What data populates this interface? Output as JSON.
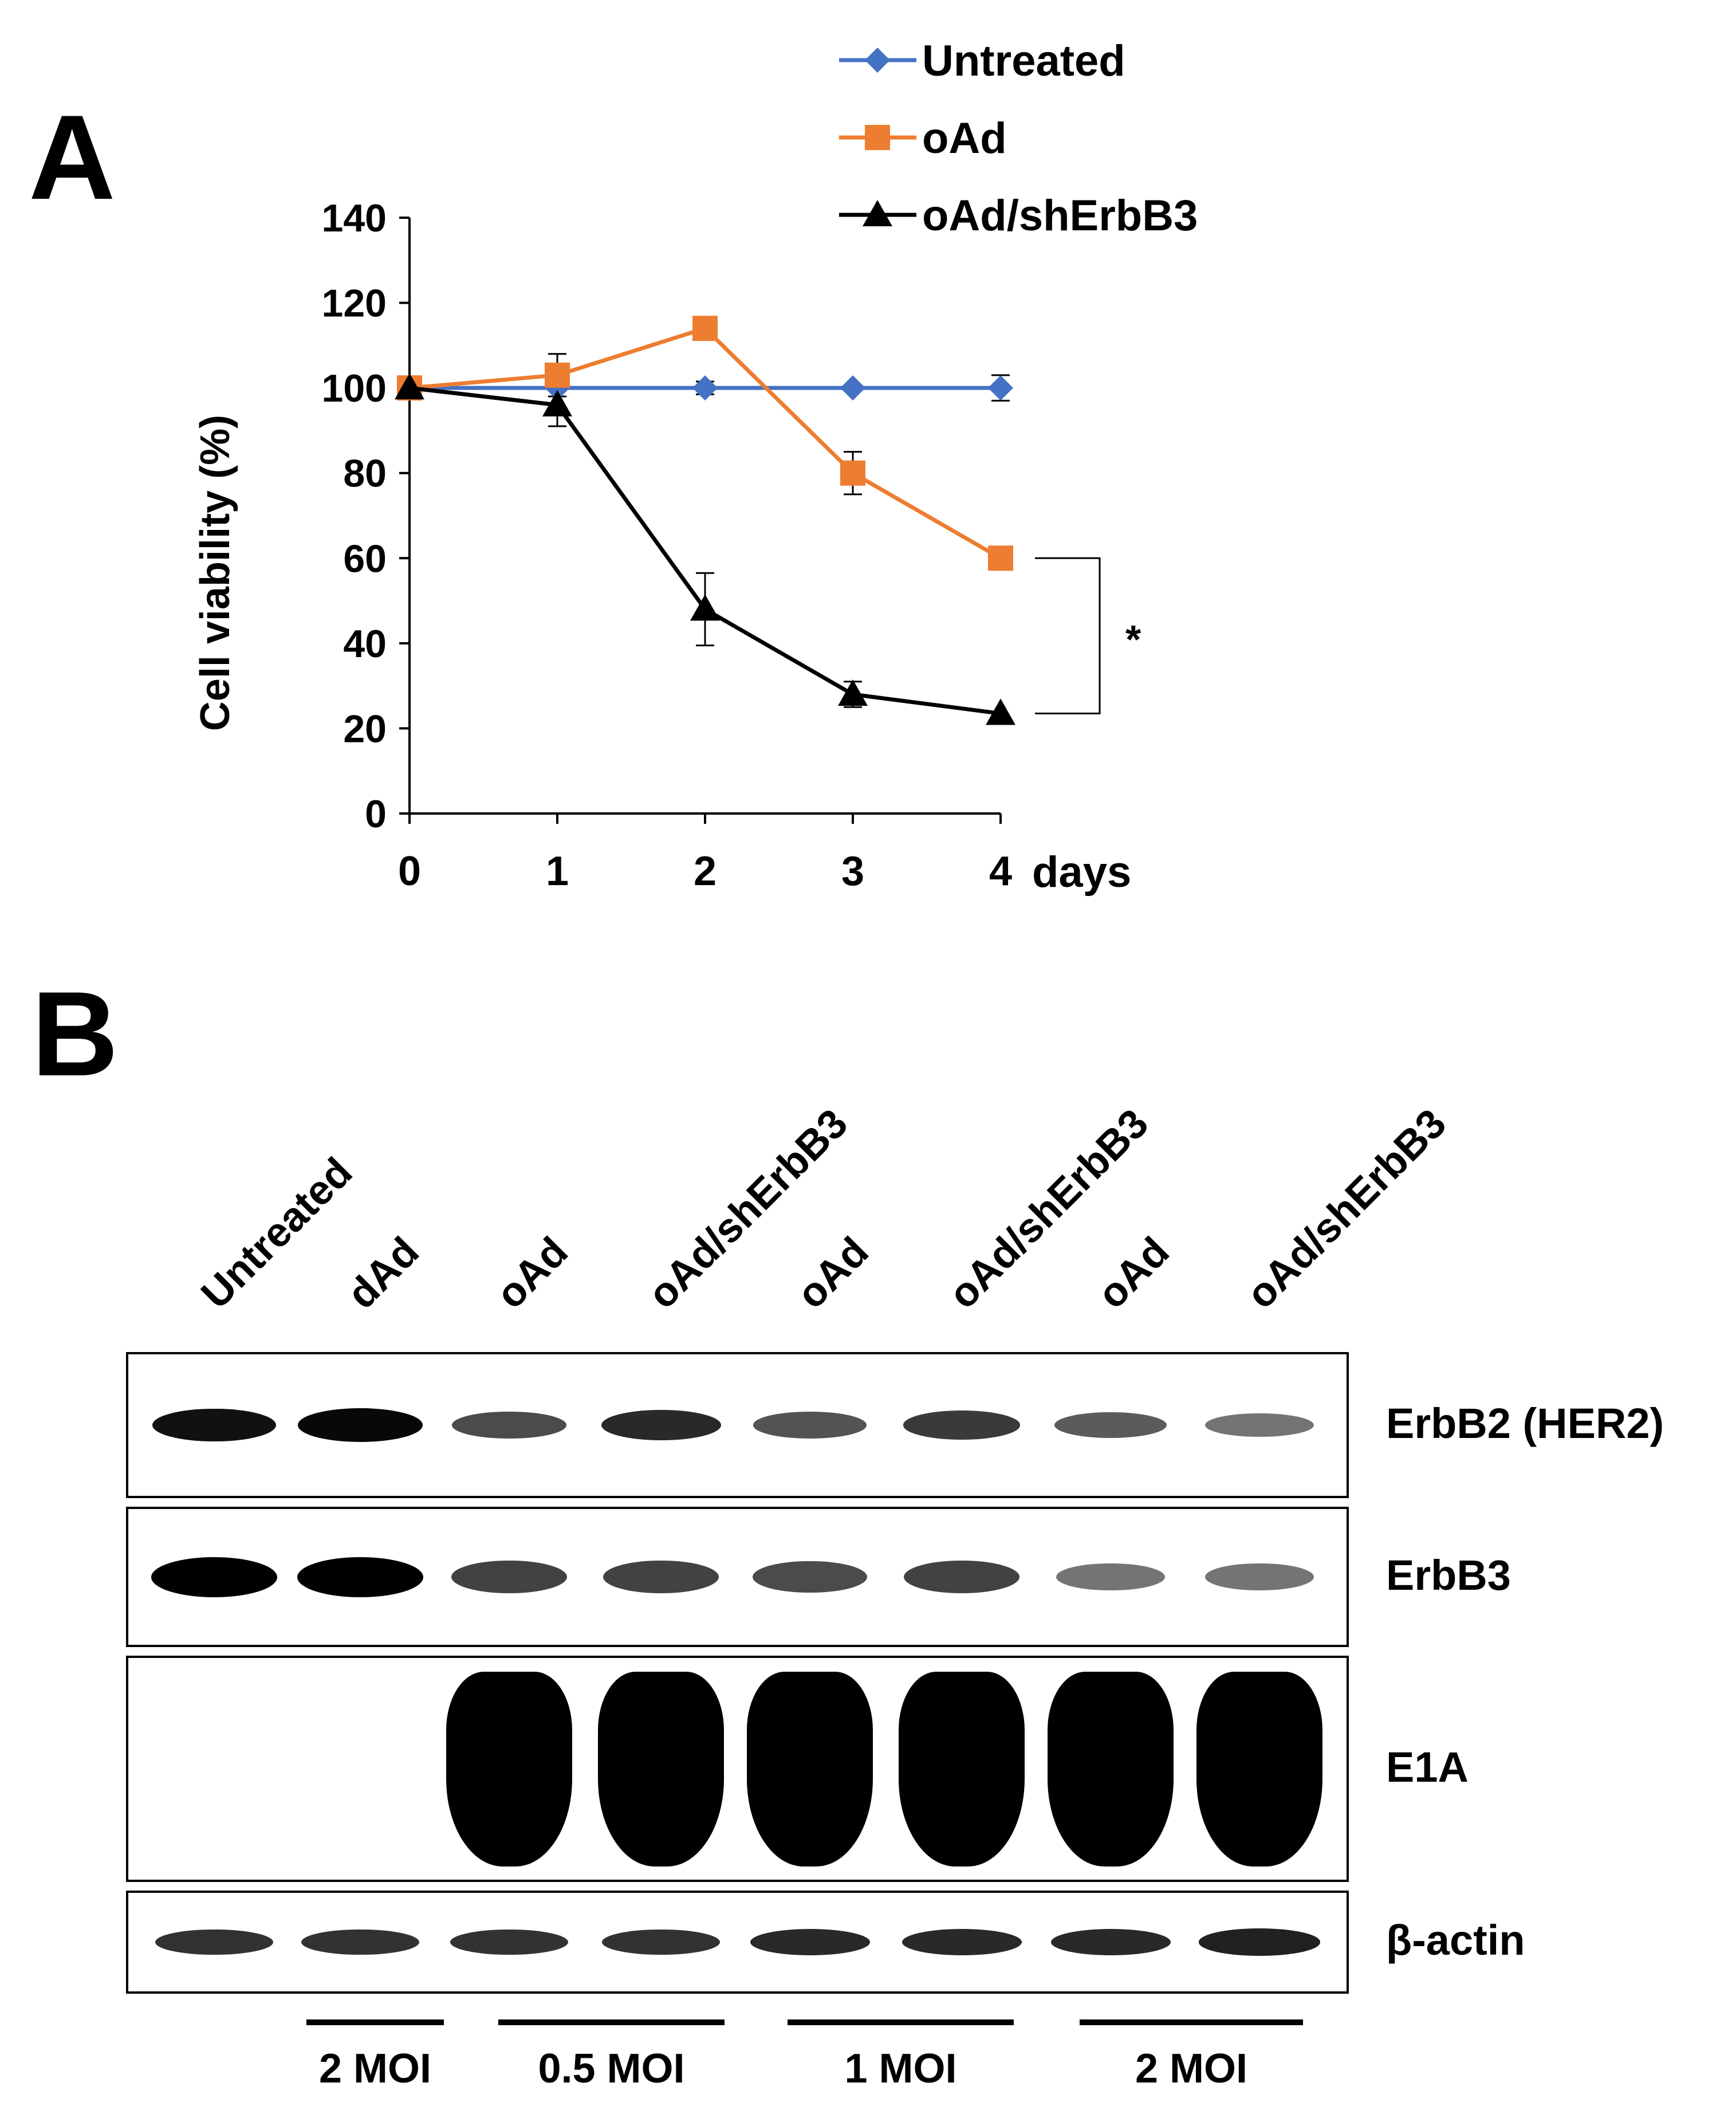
{
  "panel_a": {
    "letter": "A"
  },
  "panel_b": {
    "letter": "B",
    "lanes": [
      "Untreated",
      "dAd",
      "oAd",
      "oAd/shErbB3",
      "oAd",
      "oAd/shErbB3",
      "oAd",
      "oAd/shErbB3"
    ],
    "blots": [
      {
        "label": "ErbB2 (HER2)",
        "intensity": [
          0.9,
          0.95,
          0.55,
          0.75,
          0.5,
          0.65,
          0.45,
          0.3
        ]
      },
      {
        "label": "ErbB3",
        "intensity": [
          1.0,
          1.0,
          0.6,
          0.6,
          0.55,
          0.6,
          0.3,
          0.3
        ]
      },
      {
        "label": "E1A",
        "intensity": [
          0,
          0,
          1,
          1,
          1,
          1,
          1,
          1
        ]
      },
      {
        "label": "β-actin",
        "intensity": [
          0.7,
          0.7,
          0.7,
          0.7,
          0.75,
          0.75,
          0.75,
          0.8
        ]
      }
    ],
    "dose_groups": [
      "2 MOI",
      "0.5 MOI",
      "1 MOI",
      "2 MOI"
    ]
  },
  "chart_data": {
    "type": "line",
    "x": [
      0,
      1,
      2,
      3,
      4
    ],
    "xlabel_suffix": "days",
    "ylabel": "Cell viability (%)",
    "ylim": [
      0,
      140
    ],
    "yticks": [
      0,
      20,
      40,
      60,
      80,
      100,
      120,
      140
    ],
    "legend_position": "top-right",
    "series": [
      {
        "name": "Untreated",
        "color": "#4472c4",
        "marker": "diamond",
        "values": [
          100,
          100,
          100,
          100,
          100
        ],
        "errors": [
          0,
          0,
          1.5,
          0,
          3
        ]
      },
      {
        "name": "oAd",
        "color": "#ed7d31",
        "marker": "square",
        "values": [
          100,
          103,
          114,
          80,
          60
        ],
        "errors": [
          0,
          5,
          0,
          5,
          0
        ]
      },
      {
        "name": "oAd/shErbB3",
        "color": "#000000",
        "marker": "triangle",
        "values": [
          100,
          96,
          48,
          28,
          23.5
        ],
        "errors": [
          0,
          5,
          8.5,
          3,
          0
        ]
      }
    ],
    "annotation": {
      "text": "*",
      "between": [
        "oAd",
        "oAd/shErbB3"
      ],
      "at_x": 4
    }
  }
}
